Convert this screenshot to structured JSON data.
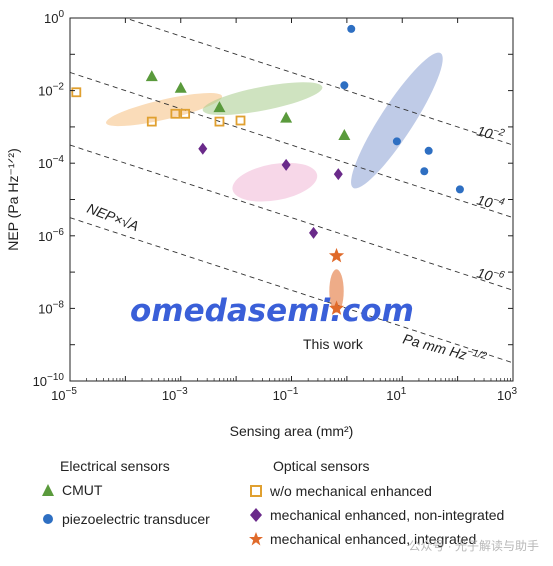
{
  "chart_data": {
    "type": "scatter",
    "xlabel": "Sensing area (mm²)",
    "ylabel": "NEP (Pa Hz⁻¹ᐟ²)",
    "xscale": "log",
    "yscale": "log",
    "xlim": [
      1e-05,
      1000
    ],
    "ylim": [
      1e-10,
      1
    ],
    "x_ticks": [
      {
        "v": 1e-05,
        "b": "10",
        "e": "−5"
      },
      {
        "v": 0.001,
        "b": "10",
        "e": "−3"
      },
      {
        "v": 0.1,
        "b": "10",
        "e": "−1"
      },
      {
        "v": 10,
        "b": "10",
        "e": "1"
      },
      {
        "v": 1000,
        "b": "10",
        "e": "3"
      }
    ],
    "y_ticks": [
      {
        "v": 1,
        "b": "10",
        "e": "0"
      },
      {
        "v": 0.01,
        "b": "10",
        "e": "−2"
      },
      {
        "v": 0.0001,
        "b": "10",
        "e": "−4"
      },
      {
        "v": 1e-06,
        "b": "10",
        "e": "−6"
      },
      {
        "v": 1e-08,
        "b": "10",
        "e": "−8"
      },
      {
        "v": 1e-10,
        "b": "10",
        "e": "−10"
      }
    ],
    "series": [
      {
        "name": "CMUT",
        "group": "Electrical sensors",
        "marker": "triangle",
        "color": "#5a9a3c",
        "points": [
          [
            0.0003,
            0.025
          ],
          [
            0.001,
            0.012
          ],
          [
            0.005,
            0.0035
          ],
          [
            0.08,
            0.0018
          ],
          [
            0.9,
            0.0006
          ]
        ]
      },
      {
        "name": "piezoelectric transducer",
        "group": "Electrical sensors",
        "marker": "circle",
        "color": "#2e6fc2",
        "points": [
          [
            1.2,
            0.5
          ],
          [
            0.9,
            0.014
          ],
          [
            8,
            0.0004
          ],
          [
            25,
            6e-05
          ],
          [
            30,
            0.00022
          ],
          [
            110,
            1.9e-05
          ]
        ]
      },
      {
        "name": "w/o mechanical enhanced",
        "group": "Optical sensors",
        "marker": "open-square",
        "color": "#e0a030",
        "points": [
          [
            1.3e-05,
            0.009
          ],
          [
            0.0003,
            0.0014
          ],
          [
            0.0008,
            0.0023
          ],
          [
            0.0012,
            0.0023
          ],
          [
            0.005,
            0.0014
          ],
          [
            0.012,
            0.0015
          ]
        ]
      },
      {
        "name": "mechanical enhanced, non-integrated",
        "group": "Optical sensors",
        "marker": "diamond",
        "color": "#6a2a8a",
        "points": [
          [
            0.0025,
            0.00025
          ],
          [
            0.08,
            9e-05
          ],
          [
            0.7,
            5e-05
          ],
          [
            0.25,
            1.2e-06
          ]
        ]
      },
      {
        "name": "mechanical enhanced, integrated",
        "group": "Optical sensors",
        "marker": "star",
        "color": "#e06a2a",
        "points": [
          [
            0.65,
            2.8e-07
          ],
          [
            0.65,
            1e-08
          ]
        ]
      }
    ],
    "regions": [
      {
        "series": "w/o mechanical enhanced",
        "color": "#f5c080",
        "opacity": 0.55,
        "cx": 0.0005,
        "cy": 0.003,
        "rx_dec": 2.15,
        "ry_dec": 0.55,
        "angle": 13
      },
      {
        "series": "CMUT",
        "color": "#a8cc8c",
        "opacity": 0.55,
        "cx": 0.03,
        "cy": 0.006,
        "rx_dec": 2.2,
        "ry_dec": 0.65,
        "angle": 11
      },
      {
        "series": "piezoelectric transducer",
        "color": "#8aa0d4",
        "opacity": 0.55,
        "cx": 8,
        "cy": 0.0015,
        "rx_dec": 2.9,
        "ry_dec": 0.9,
        "angle": 57
      },
      {
        "series": "mechanical enhanced, non-integrated",
        "color": "#efb0d2",
        "opacity": 0.5,
        "cx": 0.05,
        "cy": 3e-05,
        "rx_dec": 1.55,
        "ry_dec": 1.0,
        "angle": 10
      },
      {
        "series": "mechanical enhanced, integrated",
        "color": "#e89060",
        "opacity": 0.75,
        "cx": 0.65,
        "cy": 3e-08,
        "rx_dec": 0.26,
        "ry_dec": 1.2,
        "angle": 0
      }
    ],
    "iso_lines": [
      {
        "k": 0.01,
        "label": "10",
        "label_exp": "−2"
      },
      {
        "k": 0.0001,
        "label": "10",
        "label_exp": "−4"
      },
      {
        "k": 1e-06,
        "label": "10",
        "label_exp": "−6"
      },
      {
        "k": 1e-08,
        "label": "Pa mm Hz",
        "label_exp": "−1/2"
      }
    ],
    "iso_label": "NEP×√A",
    "annotation": "This work",
    "watermark": "omedasemi.com"
  },
  "legend": {
    "electrical_header": "Electrical sensors",
    "optical_header": "Optical sensors",
    "items": {
      "cmut": "CMUT",
      "piezo": "piezoelectric transducer",
      "wo": "w/o mechanical enhanced",
      "nonint": "mechanical enhanced, non-integrated",
      "integ": "mechanical enhanced, integrated"
    }
  },
  "footer_watermark": "公众号 · 光子解读与助手"
}
